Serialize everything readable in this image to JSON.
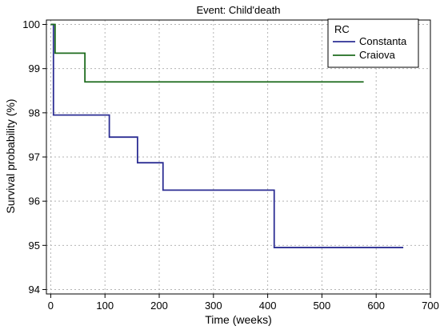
{
  "chart_data": {
    "type": "line",
    "title": "Event: Child'death",
    "xlabel": "Time (weeks)",
    "ylabel": "Survival probability (%)",
    "xlim": [
      -8,
      700
    ],
    "ylim": [
      93.9,
      100.1
    ],
    "xticks": [
      0,
      100,
      200,
      300,
      400,
      500,
      600,
      700
    ],
    "yticks": [
      94,
      95,
      96,
      97,
      98,
      99,
      100
    ],
    "grid": true,
    "legend": {
      "title": "RC",
      "placement": "top-right"
    },
    "series": [
      {
        "name": "Constanta",
        "color": "#2d2f94",
        "step": true,
        "x": [
          0,
          5,
          108,
          160,
          207,
          412,
          650
        ],
        "y": [
          100,
          97.95,
          97.45,
          96.87,
          96.25,
          94.95,
          94.95
        ]
      },
      {
        "name": "Craiova",
        "color": "#1e6b1e",
        "step": true,
        "x": [
          0,
          8,
          63,
          577
        ],
        "y": [
          100,
          99.35,
          98.7,
          98.7
        ]
      }
    ]
  }
}
